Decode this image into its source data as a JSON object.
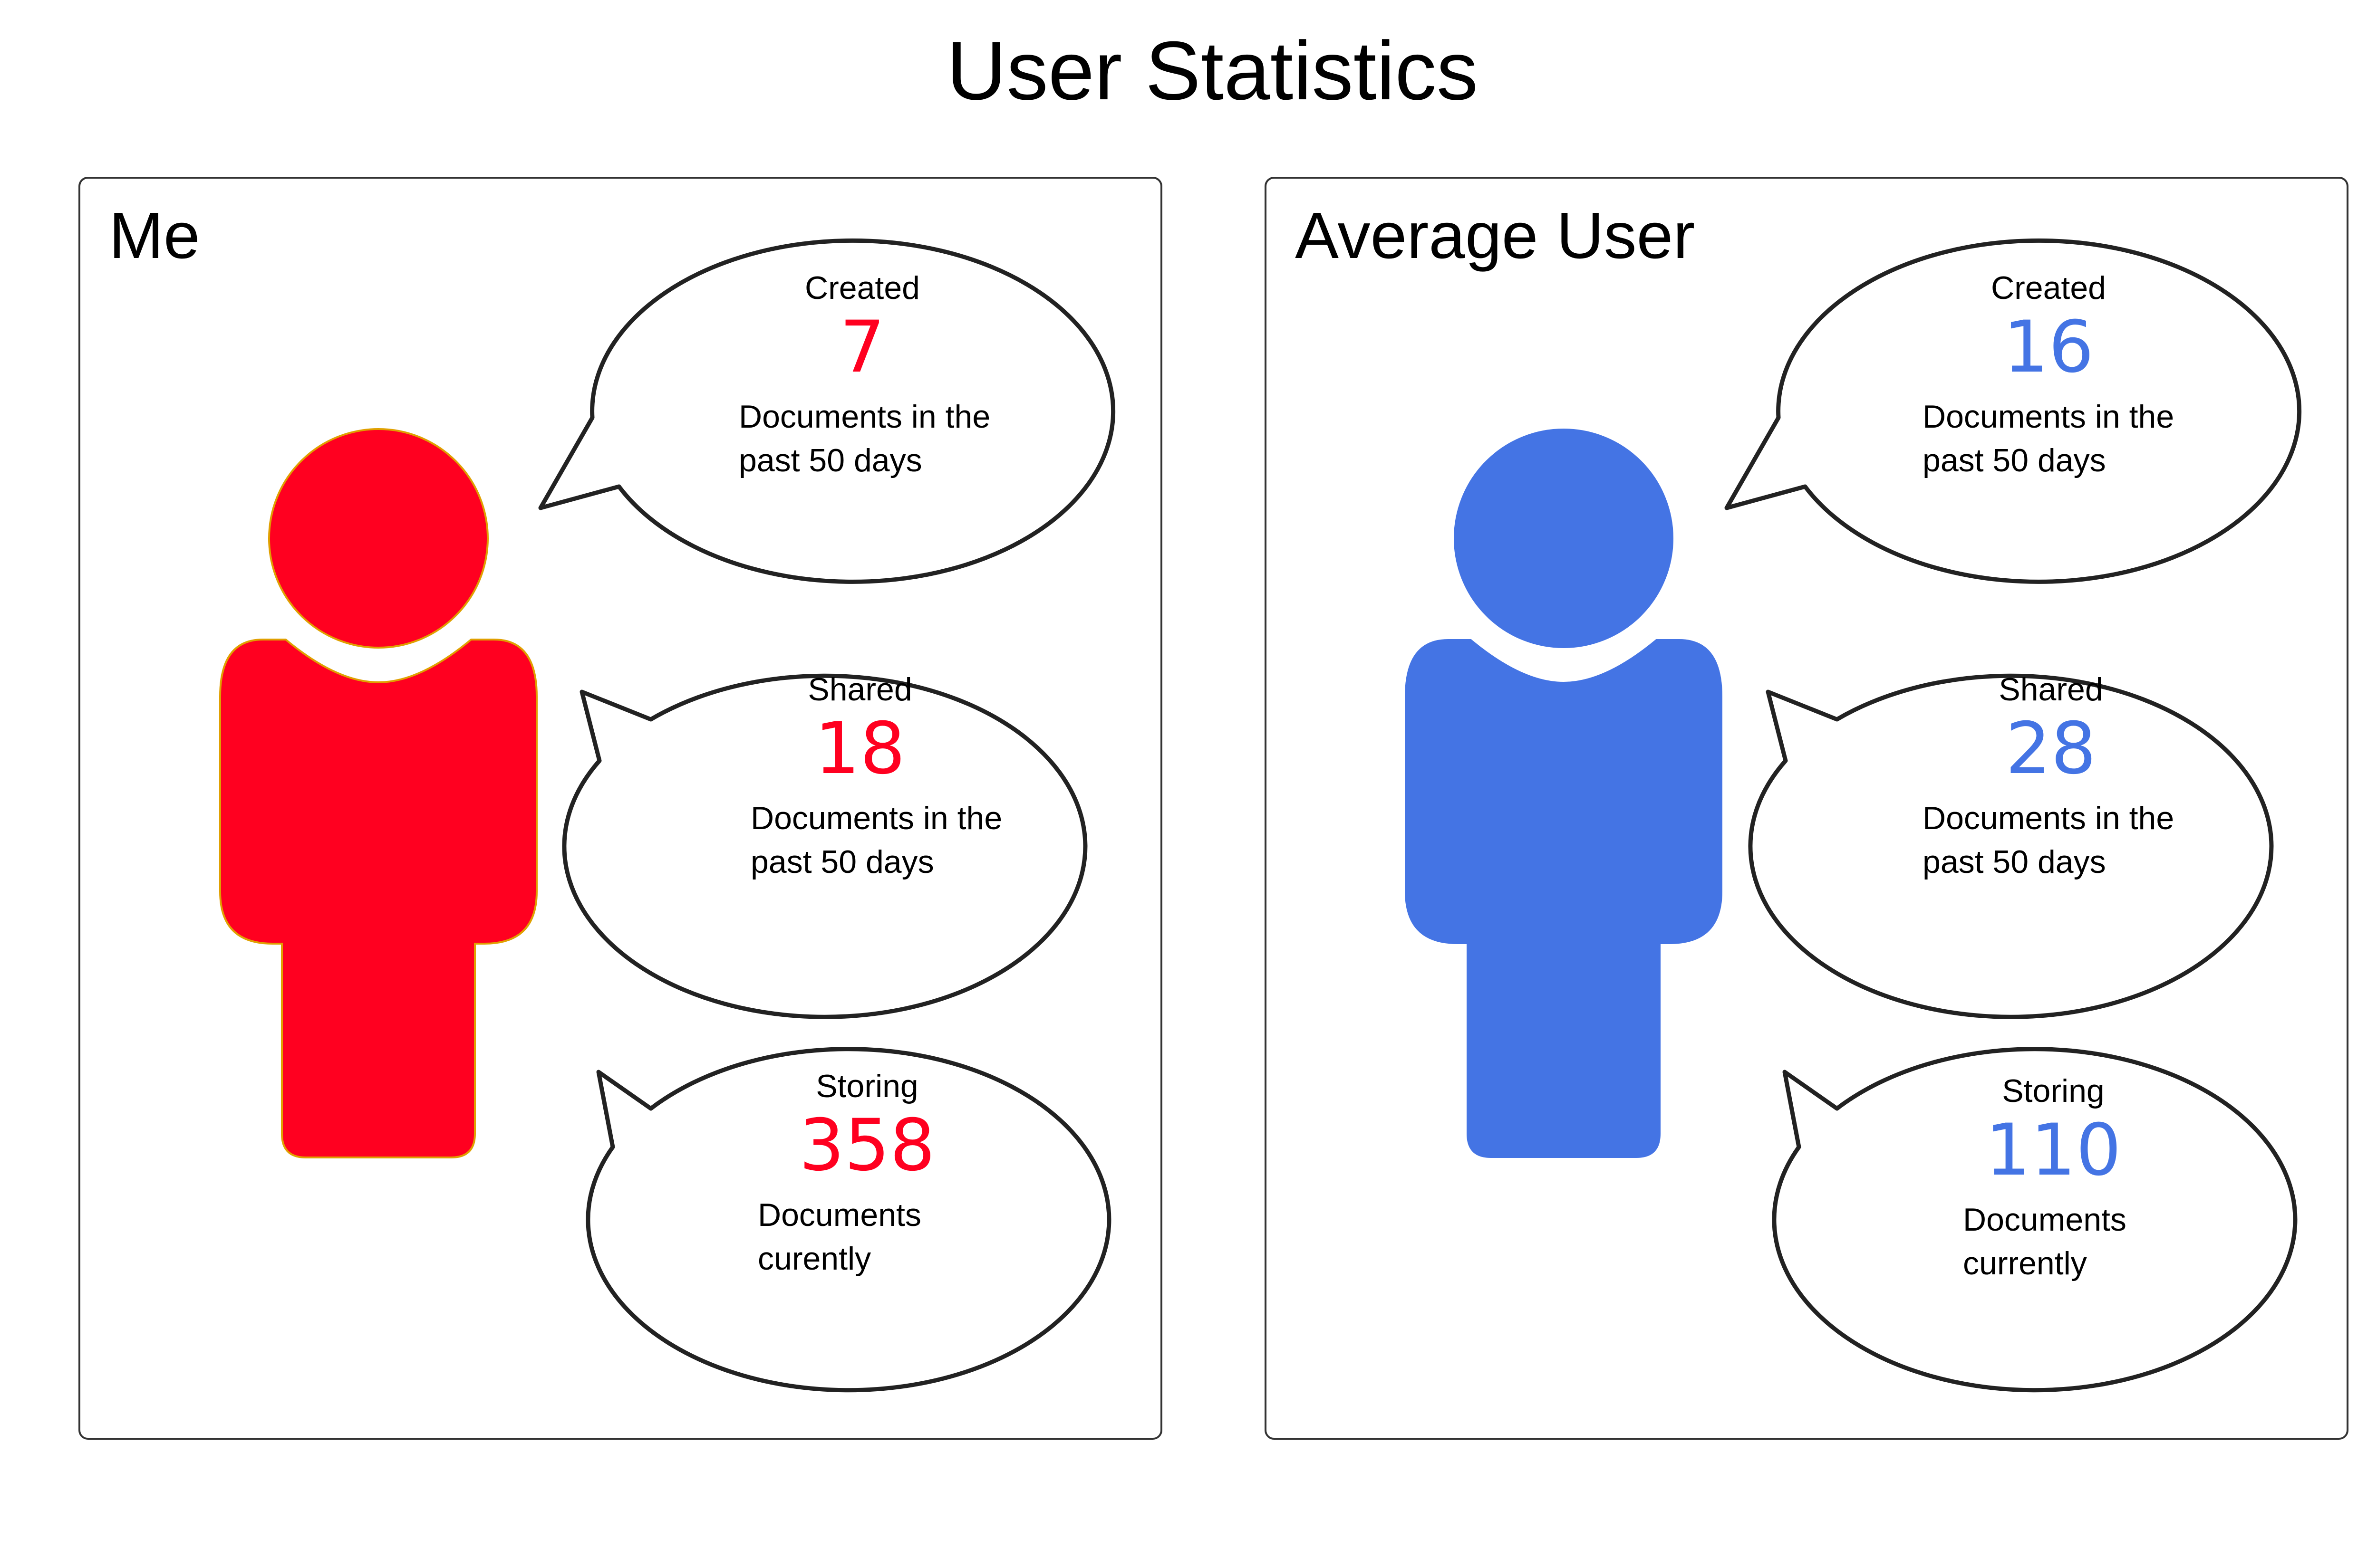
{
  "title": "User Statistics",
  "colors": {
    "me": "#ff0020",
    "average": "#4474e4",
    "outline": "#222222"
  },
  "panels": [
    {
      "name": "Me",
      "person_icon": "person-icon",
      "stats": [
        {
          "label": "Created",
          "value": "7",
          "description": "Documents in the\npast 50 days"
        },
        {
          "label": "Shared",
          "value": "18",
          "description": "Documents in the\npast 50 days"
        },
        {
          "label": "Storing",
          "value": "358",
          "description": "Documents\ncurently"
        }
      ]
    },
    {
      "name": "Average User",
      "person_icon": "person-icon",
      "stats": [
        {
          "label": "Created",
          "value": "16",
          "description": "Documents in the\npast 50 days"
        },
        {
          "label": "Shared",
          "value": "28",
          "description": "Documents in the\npast 50 days"
        },
        {
          "label": "Storing",
          "value": "110",
          "description": "Documents\ncurrently"
        }
      ]
    }
  ]
}
